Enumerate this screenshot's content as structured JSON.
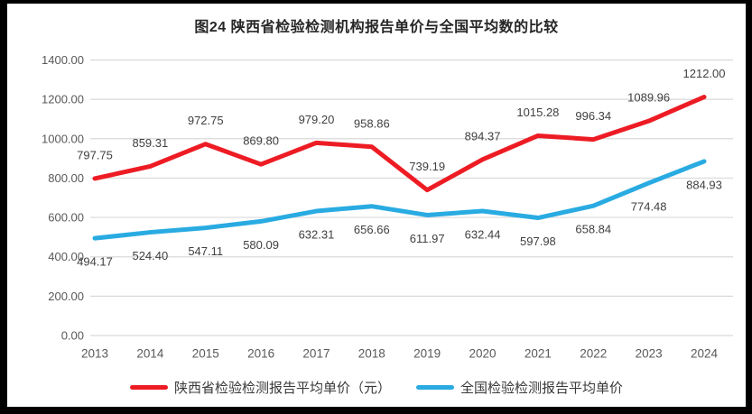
{
  "title": "图24 陕西省检验检测机构报告单价与全国平均数的比较",
  "chart_data": {
    "type": "line",
    "title": "图24 陕西省检验检测机构报告单价与全国平均数的比较",
    "categories": [
      "2013",
      "2014",
      "2015",
      "2016",
      "2017",
      "2018",
      "2019",
      "2020",
      "2021",
      "2022",
      "2023",
      "2024"
    ],
    "series": [
      {
        "name": "陕西省检验检测报告平均单价（元）",
        "color": "#ed1c24",
        "label_position": "above",
        "values": [
          797.75,
          859.31,
          972.75,
          869.8,
          979.2,
          958.86,
          739.19,
          894.37,
          1015.28,
          996.34,
          1089.96,
          1212.0
        ],
        "value_labels": [
          "797.75",
          "859.31",
          "972.75",
          "869.80",
          "979.20",
          "958.86",
          "739.19",
          "894.37",
          "1015.28",
          "996.34",
          "1089.96",
          "1212.00"
        ]
      },
      {
        "name": "全国检验检测报告平均单价",
        "color": "#29abe2",
        "label_position": "below",
        "values": [
          494.17,
          524.4,
          547.11,
          580.09,
          632.31,
          656.66,
          611.97,
          632.44,
          597.98,
          658.84,
          774.48,
          884.93
        ],
        "value_labels": [
          "494.17",
          "524.40",
          "547.11",
          "580.09",
          "632.31",
          "656.66",
          "611.97",
          "632.44",
          "597.98",
          "658.84",
          "774.48",
          "884.93"
        ]
      }
    ],
    "y_axis": {
      "min": 0,
      "max": 1400,
      "step": 200,
      "tick_labels": [
        "0.00",
        "200.00",
        "400.00",
        "600.00",
        "800.00",
        "1000.00",
        "1200.00",
        "1400.00"
      ]
    },
    "ylim": [
      0,
      1400
    ],
    "grid": true,
    "grid_color": "#d9d9d9",
    "axis_text_color": "#595959",
    "data_label_color": "#404040",
    "legend_position": "bottom"
  }
}
